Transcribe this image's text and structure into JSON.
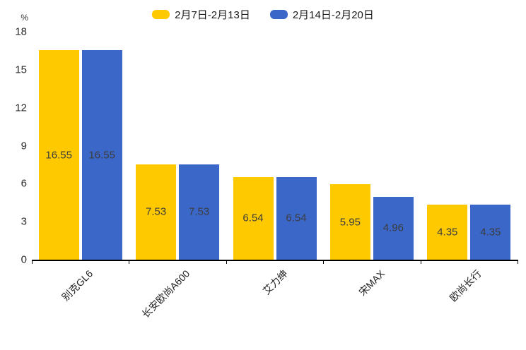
{
  "unit_label": "%",
  "legend": {
    "items": [
      {
        "label": "2月7日-2月13日",
        "color": "#FFC900"
      },
      {
        "label": "2月14日-2月20日",
        "color": "#3A67C8"
      }
    ]
  },
  "chart_data": {
    "type": "bar",
    "title": "",
    "categories": [
      "别克GL6",
      "长安欧尚A600",
      "艾力绅",
      "宋MAX",
      "欧尚长行"
    ],
    "series": [
      {
        "name": "2月7日-2月13日",
        "color": "#FFC900",
        "values": [
          16.55,
          7.53,
          6.54,
          5.95,
          4.35
        ]
      },
      {
        "name": "2月14日-2月20日",
        "color": "#3A67C8",
        "values": [
          16.55,
          7.53,
          6.54,
          4.96,
          4.35
        ]
      }
    ],
    "xlabel": "",
    "ylabel": "%",
    "ylim": [
      0,
      18
    ],
    "yticks": [
      0,
      3,
      6,
      9,
      12,
      15,
      18
    ],
    "grid": false,
    "legend_position": "top",
    "value_labels": "inside-center",
    "value_label_color": "#3d3d3d",
    "category_label_rotation": -45
  }
}
